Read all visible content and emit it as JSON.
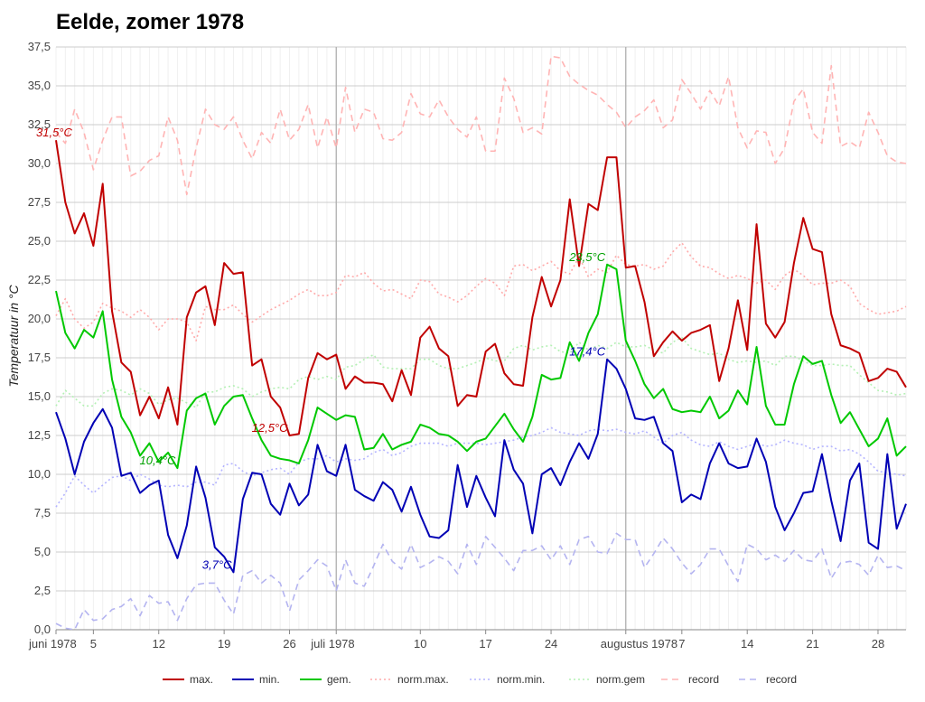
{
  "chart_data": {
    "type": "line",
    "title": "Eelde, zomer 1978",
    "ylabel": "Temperatuur in °C",
    "ylim": [
      0,
      37.5
    ],
    "yticks": [
      "0,0",
      "2,5",
      "5,0",
      "7,5",
      "10,0",
      "12,5",
      "15,0",
      "17,5",
      "20,0",
      "22,5",
      "25,0",
      "27,5",
      "30,0",
      "32,5",
      "35,0",
      "37,5"
    ],
    "xrange": [
      1,
      92
    ],
    "xticks": [
      {
        "x": 1,
        "label": "juni 1978"
      },
      {
        "x": 5,
        "label": "5"
      },
      {
        "x": 12,
        "label": "12"
      },
      {
        "x": 19,
        "label": "19"
      },
      {
        "x": 26,
        "label": "26"
      },
      {
        "x": 31,
        "label": "juli 1978"
      },
      {
        "x": 40,
        "label": "10"
      },
      {
        "x": 47,
        "label": "17"
      },
      {
        "x": 54,
        "label": "24"
      },
      {
        "x": 62,
        "label": "augustus 1978"
      },
      {
        "x": 68,
        "label": "7"
      },
      {
        "x": 75,
        "label": "14"
      },
      {
        "x": 82,
        "label": "21"
      },
      {
        "x": 89,
        "label": "28"
      }
    ],
    "month_lines": [
      31,
      62
    ],
    "grid": true,
    "legend_position": "bottom",
    "series": [
      {
        "name": "max.",
        "color": "#c00000",
        "style": "solid",
        "values": [
          31.5,
          27.5,
          25.5,
          26.8,
          24.7,
          28.7,
          20.5,
          17.2,
          16.6,
          13.8,
          15.0,
          13.6,
          15.6,
          13.2,
          20.1,
          21.7,
          22.1,
          19.6,
          23.6,
          22.9,
          23.0,
          17.0,
          17.4,
          15.0,
          14.3,
          12.5,
          12.6,
          16.2,
          17.8,
          17.4,
          17.7,
          15.5,
          16.3,
          15.9,
          15.9,
          15.8,
          14.7,
          16.7,
          15.1,
          18.8,
          19.5,
          18.1,
          17.6,
          14.4,
          15.1,
          15.0,
          17.9,
          18.4,
          16.5,
          15.8,
          15.7,
          20.1,
          22.7,
          20.8,
          22.5,
          27.7,
          23.4,
          27.4,
          27.0,
          30.4,
          30.4,
          23.3,
          23.4,
          21.1,
          17.6,
          18.5,
          19.2,
          18.6,
          19.1,
          19.3,
          19.6,
          16.0,
          18.1,
          21.2,
          18.0,
          26.1,
          19.7,
          18.8,
          19.8,
          23.6,
          26.5,
          24.5,
          24.3,
          20.3,
          18.3,
          18.1,
          17.8,
          16.0,
          16.2,
          16.8,
          16.6,
          15.6
        ]
      },
      {
        "name": "min.",
        "color": "#0000b4",
        "style": "solid",
        "values": [
          14.0,
          12.3,
          10.0,
          12.1,
          13.3,
          14.2,
          13.0,
          9.9,
          10.1,
          8.8,
          9.3,
          9.6,
          6.1,
          4.6,
          6.7,
          10.5,
          8.5,
          5.3,
          4.7,
          3.7,
          8.4,
          10.1,
          10.0,
          8.1,
          7.4,
          9.4,
          8.0,
          8.7,
          11.9,
          10.2,
          9.9,
          11.9,
          9.0,
          8.6,
          8.3,
          9.5,
          9.0,
          7.6,
          9.2,
          7.4,
          6.0,
          5.9,
          6.4,
          10.6,
          7.9,
          9.9,
          8.5,
          7.3,
          12.2,
          10.3,
          9.4,
          6.2,
          10.0,
          10.4,
          9.3,
          10.8,
          12.0,
          11.0,
          12.6,
          17.4,
          16.8,
          15.5,
          13.6,
          13.5,
          13.7,
          12.0,
          11.5,
          8.2,
          8.7,
          8.4,
          10.7,
          12.0,
          10.7,
          10.4,
          10.5,
          12.3,
          10.8,
          7.9,
          6.4,
          7.5,
          8.8,
          8.9,
          11.3,
          8.3,
          5.7,
          9.6,
          10.7,
          5.6,
          5.2,
          11.3,
          6.5,
          8.1
        ]
      },
      {
        "name": "gem.",
        "color": "#00c800",
        "style": "solid",
        "values": [
          21.8,
          19.1,
          18.1,
          19.3,
          18.8,
          20.5,
          16.1,
          13.7,
          12.7,
          11.2,
          12.0,
          10.8,
          11.4,
          10.4,
          14.1,
          14.9,
          15.2,
          13.2,
          14.4,
          15.0,
          15.1,
          13.6,
          12.2,
          11.2,
          11.0,
          10.9,
          10.7,
          12.2,
          14.3,
          13.9,
          13.5,
          13.8,
          13.7,
          11.6,
          11.7,
          12.6,
          11.6,
          11.9,
          12.1,
          13.2,
          13.0,
          12.6,
          12.5,
          12.1,
          11.5,
          12.1,
          12.3,
          13.1,
          13.9,
          12.9,
          12.1,
          13.7,
          16.4,
          16.1,
          16.2,
          18.5,
          17.3,
          19.1,
          20.3,
          23.5,
          23.2,
          18.6,
          17.3,
          15.8,
          14.9,
          15.5,
          14.2,
          14.0,
          14.1,
          14.0,
          15.0,
          13.6,
          14.1,
          15.4,
          14.5,
          18.2,
          14.4,
          13.2,
          13.2,
          15.8,
          17.6,
          17.1,
          17.3,
          15.1,
          13.3,
          14.0,
          12.9,
          11.8,
          12.3,
          13.6,
          11.2,
          11.8
        ]
      },
      {
        "name": "norm.max.",
        "color": "#ffaaaa",
        "style": "dotted",
        "values": [
          20.2,
          21.3,
          20.0,
          19.4,
          19.8,
          21.0,
          20.7,
          20.5,
          20.1,
          20.6,
          20.1,
          19.3,
          20.0,
          20.0,
          19.8,
          18.6,
          20.8,
          20.6,
          20.6,
          20.9,
          20.3,
          19.8,
          20.2,
          20.6,
          20.9,
          21.2,
          21.6,
          21.9,
          21.5,
          21.5,
          21.7,
          22.8,
          22.7,
          23.0,
          22.3,
          21.8,
          21.9,
          21.6,
          21.3,
          22.5,
          22.4,
          21.6,
          21.4,
          21.1,
          21.5,
          22.1,
          22.6,
          22.3,
          21.5,
          23.4,
          23.5,
          23.1,
          23.4,
          23.7,
          23.1,
          22.9,
          24.0,
          22.7,
          23.2,
          23.0,
          24.1,
          23.5,
          23.4,
          23.5,
          23.2,
          23.4,
          24.3,
          24.9,
          24.0,
          23.4,
          23.3,
          22.9,
          22.6,
          22.8,
          22.6,
          22.3,
          22.5,
          21.9,
          22.8,
          23.2,
          22.8,
          22.2,
          22.3,
          22.3,
          22.5,
          22.1,
          21.0,
          20.6,
          20.3,
          20.4,
          20.5,
          20.8
        ]
      },
      {
        "name": "norm.min.",
        "color": "#b4b4ff",
        "style": "dotted",
        "values": [
          7.9,
          8.8,
          9.9,
          9.3,
          8.8,
          9.3,
          9.8,
          9.9,
          9.6,
          10.0,
          9.7,
          9.3,
          9.2,
          9.3,
          9.2,
          9.5,
          9.5,
          9.3,
          10.6,
          10.7,
          10.2,
          9.9,
          10.1,
          10.3,
          10.4,
          10.0,
          10.8,
          11.0,
          11.0,
          11.2,
          10.8,
          11.0,
          10.9,
          11.0,
          11.4,
          11.6,
          11.2,
          11.4,
          11.8,
          12.0,
          12.0,
          12.0,
          11.8,
          12.0,
          12.0,
          12.0,
          11.9,
          12.0,
          12.1,
          12.2,
          12.4,
          12.5,
          12.7,
          13.0,
          12.7,
          12.6,
          12.5,
          12.8,
          12.9,
          12.8,
          12.9,
          12.7,
          12.6,
          12.8,
          12.4,
          12.0,
          12.5,
          12.7,
          12.2,
          11.9,
          11.8,
          12.1,
          11.8,
          11.6,
          11.8,
          12.0,
          11.8,
          11.9,
          12.2,
          12.0,
          11.9,
          11.6,
          11.8,
          11.8,
          11.5,
          11.6,
          11.3,
          10.8,
          10.2,
          10.1,
          10.0,
          9.9
        ]
      },
      {
        "name": "norm.gem",
        "color": "#b4f0b4",
        "style": "dotted",
        "values": [
          14.4,
          15.4,
          14.9,
          14.4,
          14.4,
          15.2,
          15.5,
          15.4,
          15.1,
          15.5,
          15.2,
          14.5,
          14.8,
          14.9,
          14.6,
          14.3,
          15.3,
          15.3,
          15.6,
          15.7,
          15.5,
          15.0,
          15.3,
          15.5,
          15.6,
          15.5,
          16.1,
          16.3,
          16.1,
          16.3,
          16.1,
          16.9,
          17.0,
          17.4,
          17.7,
          16.9,
          16.8,
          16.8,
          16.8,
          17.4,
          17.4,
          17.0,
          16.8,
          16.8,
          17.0,
          17.2,
          17.5,
          17.3,
          17.3,
          18.1,
          18.3,
          18.0,
          18.2,
          18.3,
          17.9,
          17.8,
          18.5,
          18.0,
          18.3,
          18.1,
          18.5,
          18.2,
          18.2,
          18.3,
          18.0,
          17.8,
          18.5,
          18.8,
          18.1,
          17.9,
          17.7,
          17.8,
          17.4,
          17.2,
          17.3,
          17.2,
          17.3,
          17.0,
          17.6,
          17.6,
          17.3,
          17.0,
          17.0,
          17.1,
          17.0,
          17.0,
          16.4,
          15.9,
          15.4,
          15.3,
          15.1,
          15.2
        ]
      },
      {
        "name": "record",
        "color": "#ffb4b4",
        "style": "dashed",
        "values": [
          32.0,
          31.3,
          33.5,
          32.0,
          29.6,
          31.5,
          33.0,
          33.0,
          29.2,
          29.5,
          30.2,
          30.5,
          33.0,
          31.5,
          28.0,
          31.0,
          33.5,
          32.5,
          32.2,
          33.0,
          31.5,
          30.3,
          32.0,
          31.3,
          33.5,
          31.5,
          32.2,
          33.8,
          31.0,
          33.0,
          31.0,
          34.9,
          32.0,
          33.5,
          33.3,
          31.6,
          31.5,
          32.0,
          34.5,
          33.2,
          33.0,
          34.1,
          33.0,
          32.2,
          31.7,
          33.0,
          30.8,
          30.8,
          35.5,
          34.2,
          32.0,
          32.3,
          31.9,
          36.9,
          36.8,
          35.6,
          35.1,
          34.7,
          34.4,
          33.8,
          33.3,
          32.3,
          33.0,
          33.4,
          34.1,
          32.3,
          32.8,
          35.4,
          34.5,
          33.5,
          34.7,
          33.7,
          35.6,
          32.3,
          31.0,
          32.1,
          32.0,
          30.0,
          31.0,
          34.0,
          34.8,
          32.0,
          31.3,
          36.3,
          31.1,
          31.4,
          31.0,
          33.3,
          32.0,
          30.5,
          30.1,
          30.0
        ]
      },
      {
        "name": "record",
        "color": "#b4b4f0",
        "style": "dashed",
        "values": [
          0.4,
          0.1,
          0.0,
          1.3,
          0.6,
          0.7,
          1.3,
          1.5,
          2.0,
          0.9,
          2.2,
          1.7,
          1.8,
          0.6,
          2.0,
          2.9,
          3.0,
          3.0,
          1.9,
          1.0,
          3.5,
          3.8,
          3.0,
          3.5,
          3.0,
          1.2,
          3.2,
          3.8,
          4.5,
          4.1,
          2.5,
          4.5,
          3.0,
          2.8,
          4.1,
          5.5,
          4.4,
          3.9,
          5.5,
          4.0,
          4.3,
          4.7,
          4.4,
          3.6,
          5.5,
          4.2,
          6.0,
          5.3,
          4.6,
          3.8,
          5.1,
          5.1,
          5.4,
          4.5,
          5.4,
          4.2,
          5.8,
          6.0,
          5.0,
          4.9,
          6.2,
          5.8,
          5.8,
          4.0,
          4.9,
          5.9,
          5.2,
          4.3,
          3.6,
          4.2,
          5.2,
          5.2,
          4.1,
          3.1,
          5.5,
          5.2,
          4.5,
          4.8,
          4.4,
          5.1,
          4.5,
          4.4,
          5.2,
          3.3,
          4.3,
          4.4,
          4.2,
          3.5,
          4.8,
          4.0,
          4.1,
          3.8
        ]
      }
    ],
    "annotations": [
      {
        "text": "31,5°C",
        "x": 1,
        "y": 31.5,
        "color": "#c00000"
      },
      {
        "text": "10,4°C",
        "x": 14,
        "y": 10.4,
        "color": "#00a000"
      },
      {
        "text": "3,7°C",
        "x": 20,
        "y": 3.7,
        "color": "#0000b4"
      },
      {
        "text": "12,5°C",
        "x": 26,
        "y": 12.5,
        "color": "#c00000"
      },
      {
        "text": "23,5°C",
        "x": 60,
        "y": 23.5,
        "color": "#00a000"
      },
      {
        "text": "17,4°C",
        "x": 60,
        "y": 17.4,
        "color": "#0000b4"
      }
    ]
  }
}
